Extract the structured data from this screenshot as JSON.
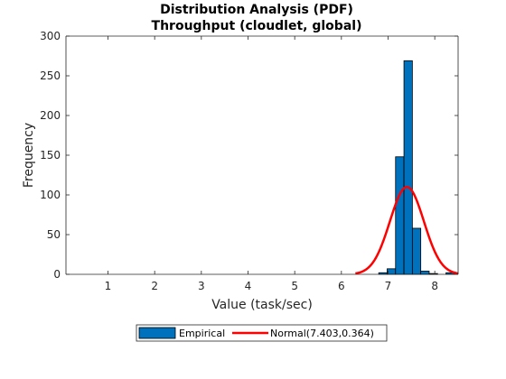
{
  "chart_data": {
    "type": "bar",
    "title": "Distribution Analysis (PDF)",
    "subtitle": "Throughput (cloudlet, global)",
    "xlabel": "Value (task/sec)",
    "ylabel": "Frequency",
    "xlim": [
      0.1,
      8.5
    ],
    "ylim": [
      0,
      300
    ],
    "xticks": [
      1,
      2,
      3,
      4,
      5,
      6,
      7,
      8
    ],
    "yticks": [
      0,
      50,
      100,
      150,
      200,
      250,
      300
    ],
    "grid": false,
    "legend_position": "bottom-outside",
    "bin_width": 0.18,
    "series": [
      {
        "name": "Empirical",
        "kind": "histogram",
        "color": "#0072BD",
        "bins": [
          {
            "x0": 6.8,
            "x1": 6.98,
            "value": 2
          },
          {
            "x0": 6.98,
            "x1": 7.16,
            "value": 7
          },
          {
            "x0": 7.16,
            "x1": 7.34,
            "value": 148
          },
          {
            "x0": 7.34,
            "x1": 7.52,
            "value": 269
          },
          {
            "x0": 7.52,
            "x1": 7.7,
            "value": 58
          },
          {
            "x0": 7.7,
            "x1": 7.88,
            "value": 4
          },
          {
            "x0": 7.88,
            "x1": 8.06,
            "value": 1
          },
          {
            "x0": 8.06,
            "x1": 8.24,
            "value": 0
          },
          {
            "x0": 8.24,
            "x1": 8.42,
            "value": 2
          }
        ]
      },
      {
        "name": "Normal(7.403,0.364)",
        "kind": "pdf-line",
        "color": "#FF0000",
        "mean": 7.403,
        "std": 0.364,
        "peak": 110,
        "x_start": 6.3,
        "x_end": 8.5
      }
    ]
  }
}
